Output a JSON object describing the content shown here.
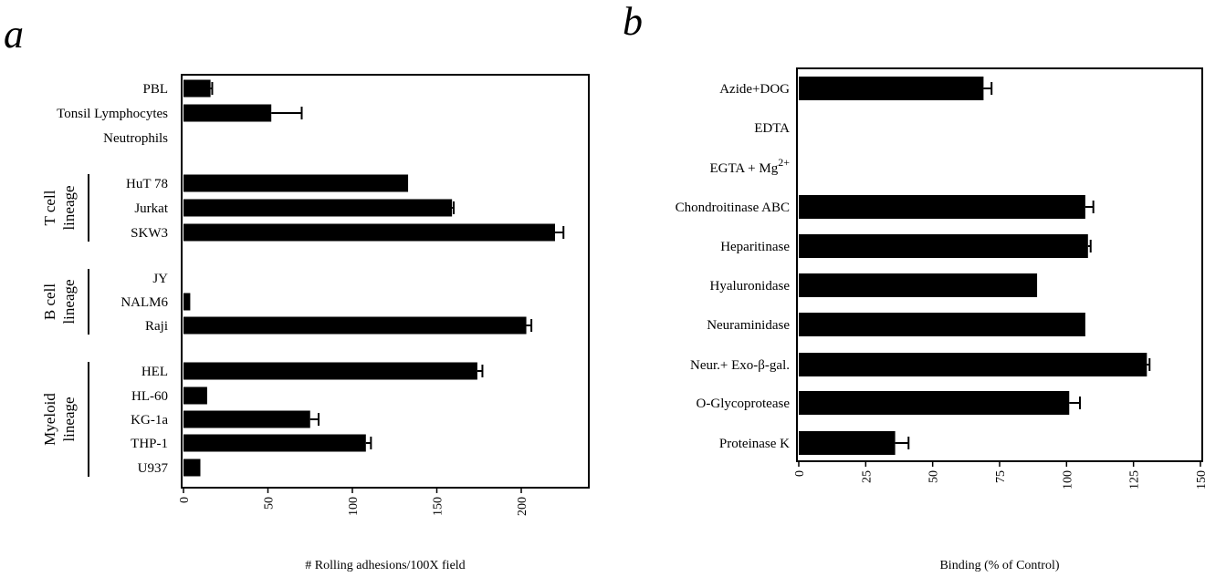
{
  "figure": {
    "panel_a_letter": "a",
    "panel_b_letter": "b"
  },
  "chart_data": [
    {
      "type": "bar",
      "orientation": "horizontal",
      "panel": "a",
      "xlabel": "# Rolling adhesions/100X field",
      "xlim": [
        0,
        240
      ],
      "xticks": [
        0,
        50,
        100,
        150,
        200
      ],
      "categories": [
        "PBL",
        "Tonsil Lymphocytes",
        "Neutrophils",
        "HuT 78",
        "Jurkat",
        "SKW3",
        "JY",
        "NALM6",
        "Raji",
        "HEL",
        "HL-60",
        "KG-1a",
        "THP-1",
        "U937"
      ],
      "values": [
        16,
        52,
        0,
        133,
        159,
        220,
        0,
        4,
        203,
        174,
        14,
        75,
        108,
        10
      ],
      "errors": [
        1,
        18,
        0,
        0,
        1,
        5,
        0,
        0,
        3,
        3,
        0,
        5,
        3,
        0
      ],
      "groups": [
        {
          "label_lines": [
            "T cell",
            "lineage"
          ],
          "members": [
            "HuT 78",
            "Jurkat",
            "SKW3"
          ]
        },
        {
          "label_lines": [
            "B cell",
            "lineage"
          ],
          "members": [
            "JY",
            "NALM6",
            "Raji"
          ]
        },
        {
          "label_lines": [
            "Myeloid",
            "lineage"
          ],
          "members": [
            "HEL",
            "HL-60",
            "KG-1a",
            "THP-1",
            "U937"
          ]
        }
      ]
    },
    {
      "type": "bar",
      "orientation": "horizontal",
      "panel": "b",
      "xlabel": "Binding (% of Control)",
      "xlim": [
        0,
        150
      ],
      "xticks": [
        0,
        25,
        50,
        75,
        100,
        125,
        150
      ],
      "categories": [
        "Azide+DOG",
        "EDTA",
        "EGTA + Mg",
        "Chondroitinase ABC",
        "Heparitinase",
        "Hyaluronidase",
        "Neuraminidase",
        "Neur.+ Exo-β-gal.",
        "O-Glycoprotease",
        "Proteinase K"
      ],
      "category_superscripts": [
        "",
        "",
        "2+",
        "",
        "",
        "",
        "",
        "",
        "",
        ""
      ],
      "values": [
        69,
        0,
        0,
        107,
        108,
        89,
        107,
        130,
        101,
        36
      ],
      "errors": [
        3,
        0,
        0,
        3,
        1,
        0,
        0,
        1,
        4,
        5
      ]
    }
  ]
}
